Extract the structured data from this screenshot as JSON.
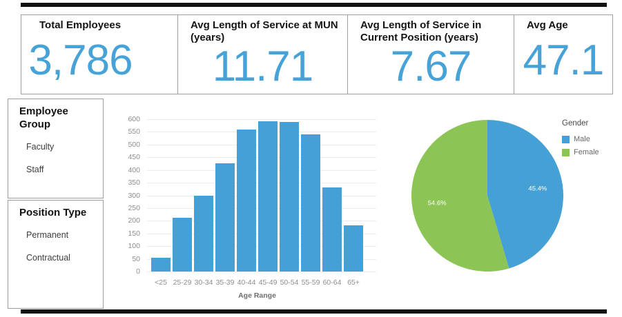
{
  "kpis": [
    {
      "title": "Total Employees",
      "value": "3,786"
    },
    {
      "title": "Avg Length of Service at MUN (years)",
      "value": "11.71"
    },
    {
      "title": "Avg Length of Service in Current Position (years)",
      "value": "7.67"
    },
    {
      "title": "Avg Age",
      "value": "47.1"
    }
  ],
  "filters": [
    {
      "title": "Employee Group",
      "options": [
        "Faculty",
        "Staff"
      ]
    },
    {
      "title": "Position Type",
      "options": [
        "Permanent",
        "Contractual"
      ]
    }
  ],
  "chart_data": [
    {
      "type": "bar",
      "title": "",
      "categories": [
        "<25",
        "25-29",
        "30-34",
        "35-39",
        "40-44",
        "45-49",
        "50-54",
        "55-59",
        "60-64",
        "65+"
      ],
      "values": [
        55,
        213,
        298,
        425,
        560,
        593,
        589,
        540,
        330,
        183
      ],
      "xlabel": "Age Range",
      "ylabel": "",
      "ylim": [
        0,
        600
      ],
      "ytick_step": 50,
      "grid": true,
      "bar_color": "#45a1d5"
    },
    {
      "type": "pie",
      "legend_title": "Gender",
      "legend_position": "top-right",
      "slices": [
        {
          "label": "Male",
          "pct": 45.4,
          "pct_label": "45.4%",
          "color": "#45a1d5"
        },
        {
          "label": "Female",
          "pct": 54.6,
          "pct_label": "54.6%",
          "color": "#8cc455"
        }
      ]
    }
  ],
  "colors": {
    "kpi_value": "#47a3d7",
    "card_border": "#9e9e9e",
    "frame_rule": "#121212"
  }
}
